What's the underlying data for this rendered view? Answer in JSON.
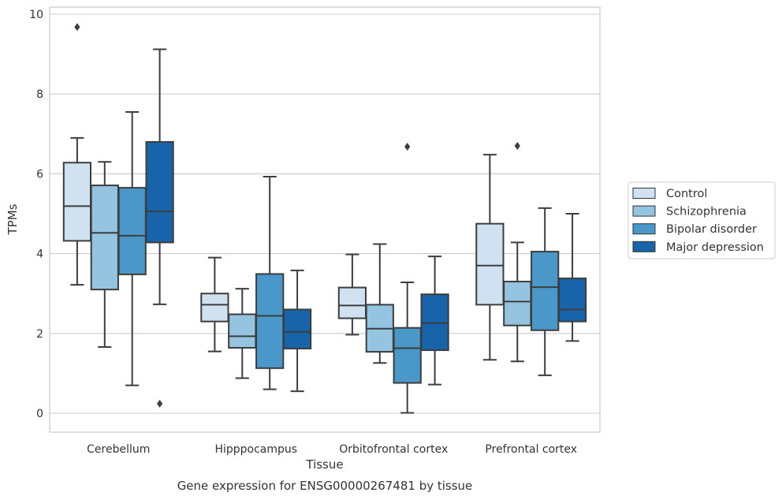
{
  "chart_data": {
    "type": "box",
    "title": "",
    "caption": "Gene expression for ENSG00000267481 by tissue",
    "xlabel": "Tissue",
    "ylabel": "TPMs",
    "ylim": [
      -0.45,
      10.2
    ],
    "yticks": [
      0,
      2,
      4,
      6,
      8,
      10
    ],
    "grid": "horizontal",
    "legend_position": "right",
    "categories": [
      "Cerebellum",
      "Hipppocampus",
      "Orbitofrontal cortex",
      "Prefrontal cortex"
    ],
    "series": [
      {
        "name": "Control",
        "color": "#d0e1f2",
        "boxes": [
          {
            "whislo": 3.22,
            "q1": 4.32,
            "med": 5.19,
            "q3": 6.28,
            "whishi": 6.9,
            "fliers": [
              9.68
            ]
          },
          {
            "whislo": 1.55,
            "q1": 2.3,
            "med": 2.72,
            "q3": 3.0,
            "whishi": 3.9,
            "fliers": []
          },
          {
            "whislo": 1.97,
            "q1": 2.38,
            "med": 2.7,
            "q3": 3.15,
            "whishi": 3.98,
            "fliers": []
          },
          {
            "whislo": 1.34,
            "q1": 2.72,
            "med": 3.7,
            "q3": 4.75,
            "whishi": 6.48,
            "fliers": []
          }
        ]
      },
      {
        "name": "Schizophrenia",
        "color": "#94c4df",
        "boxes": [
          {
            "whislo": 1.66,
            "q1": 3.1,
            "med": 4.52,
            "q3": 5.71,
            "whishi": 6.3,
            "fliers": []
          },
          {
            "whislo": 0.88,
            "q1": 1.64,
            "med": 1.93,
            "q3": 2.48,
            "whishi": 3.12,
            "fliers": []
          },
          {
            "whislo": 1.26,
            "q1": 1.54,
            "med": 2.12,
            "q3": 2.72,
            "whishi": 4.24,
            "fliers": []
          },
          {
            "whislo": 1.3,
            "q1": 2.2,
            "med": 2.8,
            "q3": 3.3,
            "whishi": 4.28,
            "fliers": [
              6.7
            ]
          }
        ]
      },
      {
        "name": "Bipolar disorder",
        "color": "#4a98c9",
        "boxes": [
          {
            "whislo": 0.7,
            "q1": 3.48,
            "med": 4.45,
            "q3": 5.65,
            "whishi": 7.55,
            "fliers": []
          },
          {
            "whislo": 0.6,
            "q1": 1.13,
            "med": 2.44,
            "q3": 3.49,
            "whishi": 5.93,
            "fliers": []
          },
          {
            "whislo": 0.01,
            "q1": 0.76,
            "med": 1.63,
            "q3": 2.14,
            "whishi": 3.28,
            "fliers": [
              6.68
            ]
          },
          {
            "whislo": 0.95,
            "q1": 2.08,
            "med": 3.16,
            "q3": 4.05,
            "whishi": 5.14,
            "fliers": []
          }
        ]
      },
      {
        "name": "Major depression",
        "color": "#1764ab",
        "boxes": [
          {
            "whislo": 2.73,
            "q1": 4.28,
            "med": 5.06,
            "q3": 6.8,
            "whishi": 9.12,
            "fliers": [
              0.24
            ]
          },
          {
            "whislo": 0.55,
            "q1": 1.62,
            "med": 2.04,
            "q3": 2.6,
            "whishi": 3.58,
            "fliers": []
          },
          {
            "whislo": 0.72,
            "q1": 1.58,
            "med": 2.26,
            "q3": 2.98,
            "whishi": 3.93,
            "fliers": []
          },
          {
            "whislo": 1.81,
            "q1": 2.3,
            "med": 2.6,
            "q3": 3.38,
            "whishi": 5.0,
            "fliers": []
          }
        ]
      }
    ]
  }
}
